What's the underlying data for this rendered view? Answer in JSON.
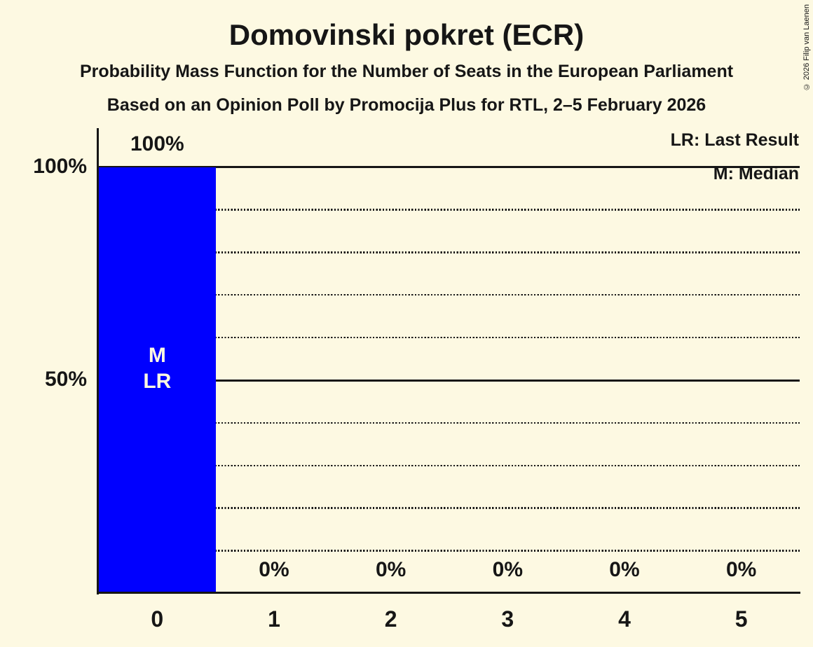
{
  "title": "Domovinski pokret (ECR)",
  "subtitle1": "Probability Mass Function for the Number of Seats in the European Parliament",
  "subtitle2": "Based on an Opinion Poll by Promocija Plus for RTL, 2–5 February 2026",
  "copyright": "© 2026 Filip van Laenen",
  "legend": {
    "lr": "LR: Last Result",
    "m": "M: Median"
  },
  "colors": {
    "background": "#FDF9E2",
    "bar": "#0000FF",
    "text": "#161616",
    "marker_text": "#FDF9E2"
  },
  "chart_data": {
    "type": "bar",
    "title": "Domovinski pokret (ECR)",
    "categories": [
      "0",
      "1",
      "2",
      "3",
      "4",
      "5"
    ],
    "values": [
      100,
      0,
      0,
      0,
      0,
      0
    ],
    "bar_labels": [
      "100%",
      "0%",
      "0%",
      "0%",
      "0%",
      "0%"
    ],
    "xlabel": "",
    "ylabel": "",
    "ylim": [
      0,
      100
    ],
    "yticks": [
      {
        "label": "100%",
        "value": 100
      },
      {
        "label": "50%",
        "value": 50
      }
    ],
    "solid_gridlines": [
      100,
      50
    ],
    "dotted_gridlines": [
      90,
      80,
      70,
      60,
      40,
      30,
      20,
      10
    ],
    "legend_position": "top-right",
    "annotations": {
      "median_seat": "0",
      "last_result_seat": "0",
      "in_bar_marker_lines": [
        "M",
        "LR"
      ]
    }
  }
}
